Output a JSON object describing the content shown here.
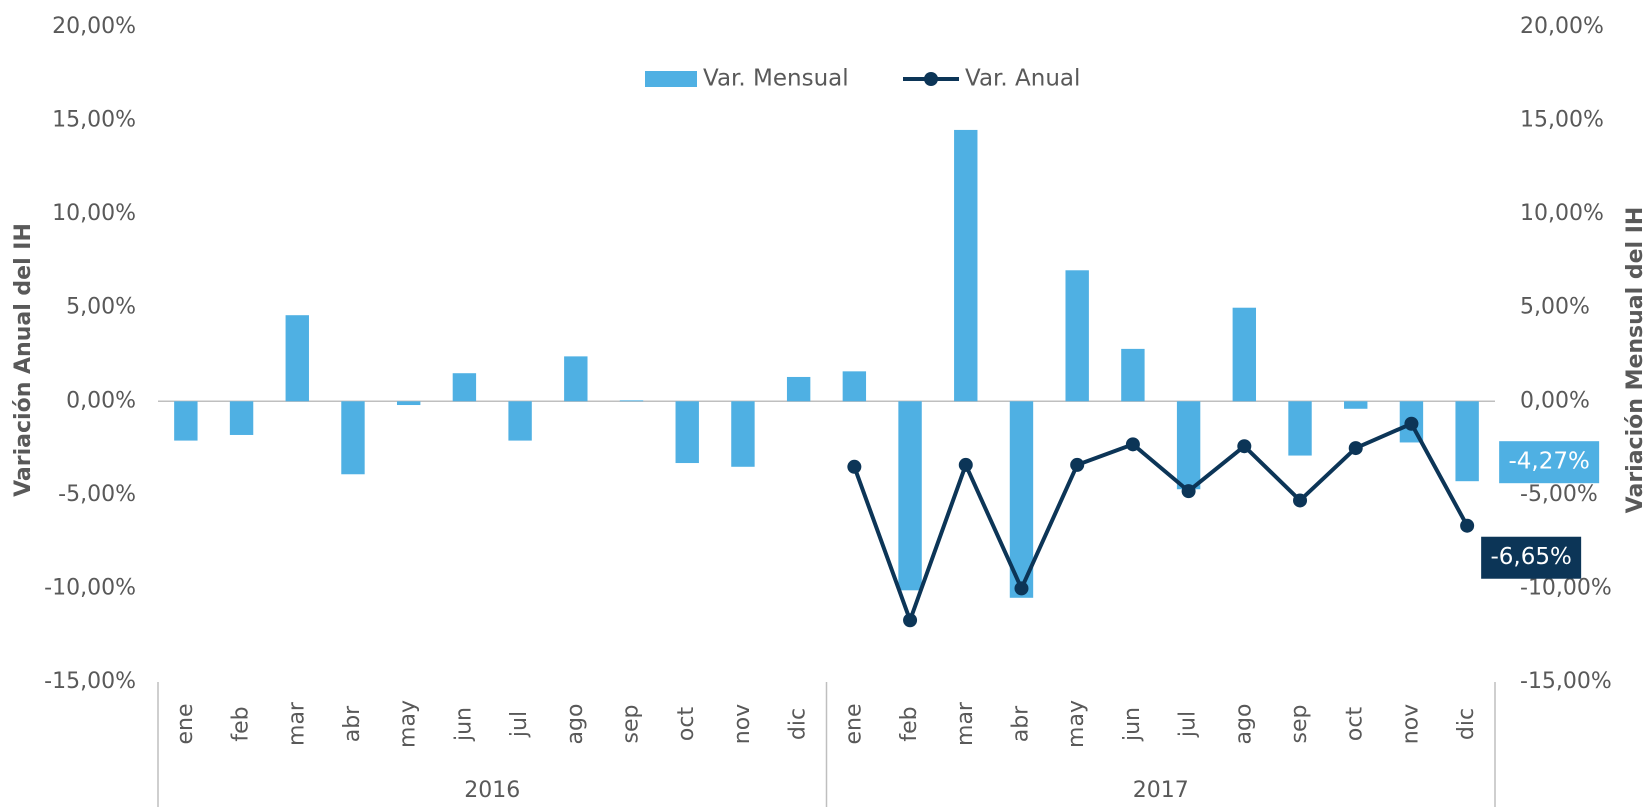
{
  "chart_data": {
    "type": "bar-line",
    "groups": [
      {
        "name": "2016",
        "categories": [
          "ene",
          "feb",
          "mar",
          "abr",
          "may",
          "jun",
          "jul",
          "ago",
          "sep",
          "oct",
          "nov",
          "dic"
        ]
      },
      {
        "name": "2017",
        "categories": [
          "ene",
          "feb",
          "mar",
          "abr",
          "may",
          "jun",
          "jul",
          "ago",
          "sep",
          "oct",
          "nov",
          "dic"
        ]
      }
    ],
    "series": [
      {
        "name": "Var. Mensual",
        "type": "bar",
        "axis": "y2",
        "color": "#4fb0e3",
        "values": [
          -2.1,
          -1.8,
          4.6,
          -3.9,
          -0.2,
          1.5,
          -2.1,
          2.4,
          0.05,
          -3.3,
          -3.5,
          1.3,
          1.6,
          -10.1,
          14.5,
          -10.5,
          7.0,
          2.8,
          -4.7,
          5.0,
          -2.9,
          -0.4,
          -2.2,
          -4.27
        ],
        "value_labels": [
          null,
          null,
          null,
          null,
          null,
          null,
          null,
          null,
          null,
          null,
          null,
          null,
          null,
          null,
          null,
          null,
          null,
          null,
          null,
          null,
          null,
          null,
          null,
          "-4,27%"
        ]
      },
      {
        "name": "Var. Anual",
        "type": "line",
        "axis": "y",
        "color": "#0c3557",
        "values": [
          null,
          null,
          null,
          null,
          null,
          null,
          null,
          null,
          null,
          null,
          null,
          null,
          -3.5,
          -11.7,
          -3.4,
          -10.0,
          -3.4,
          -2.3,
          -4.8,
          -2.4,
          -5.3,
          -2.5,
          -1.2,
          -6.65
        ],
        "value_labels": [
          null,
          null,
          null,
          null,
          null,
          null,
          null,
          null,
          null,
          null,
          null,
          null,
          null,
          null,
          null,
          null,
          null,
          null,
          null,
          null,
          null,
          null,
          null,
          "-6,65%"
        ]
      }
    ],
    "y_label": "Variación Anual del IH",
    "y2_label": "Variación Mensual del IH",
    "ylim": [
      -15,
      20
    ],
    "yticks": [
      {
        "value": -15,
        "label": "-15,00%"
      },
      {
        "value": -10,
        "label": "-10,00%"
      },
      {
        "value": -5,
        "label": "-5,00%"
      },
      {
        "value": 0,
        "label": "0,00%"
      },
      {
        "value": 5,
        "label": "5,00%"
      },
      {
        "value": 10,
        "label": "10,00%"
      },
      {
        "value": 15,
        "label": "15,00%"
      },
      {
        "value": 20,
        "label": "20,00%"
      }
    ],
    "y2lim": [
      -15,
      20
    ],
    "y2ticks": [
      {
        "value": -15,
        "label": "-15,00%"
      },
      {
        "value": -10,
        "label": "-10,00%"
      },
      {
        "value": -5,
        "label": "-5,00%"
      },
      {
        "value": 0,
        "label": "0,00%"
      },
      {
        "value": 5,
        "label": "5,00%"
      },
      {
        "value": 10,
        "label": "10,00%"
      },
      {
        "value": 15,
        "label": "15,00%"
      },
      {
        "value": 20,
        "label": "20,00%"
      }
    ],
    "legend": "top"
  }
}
